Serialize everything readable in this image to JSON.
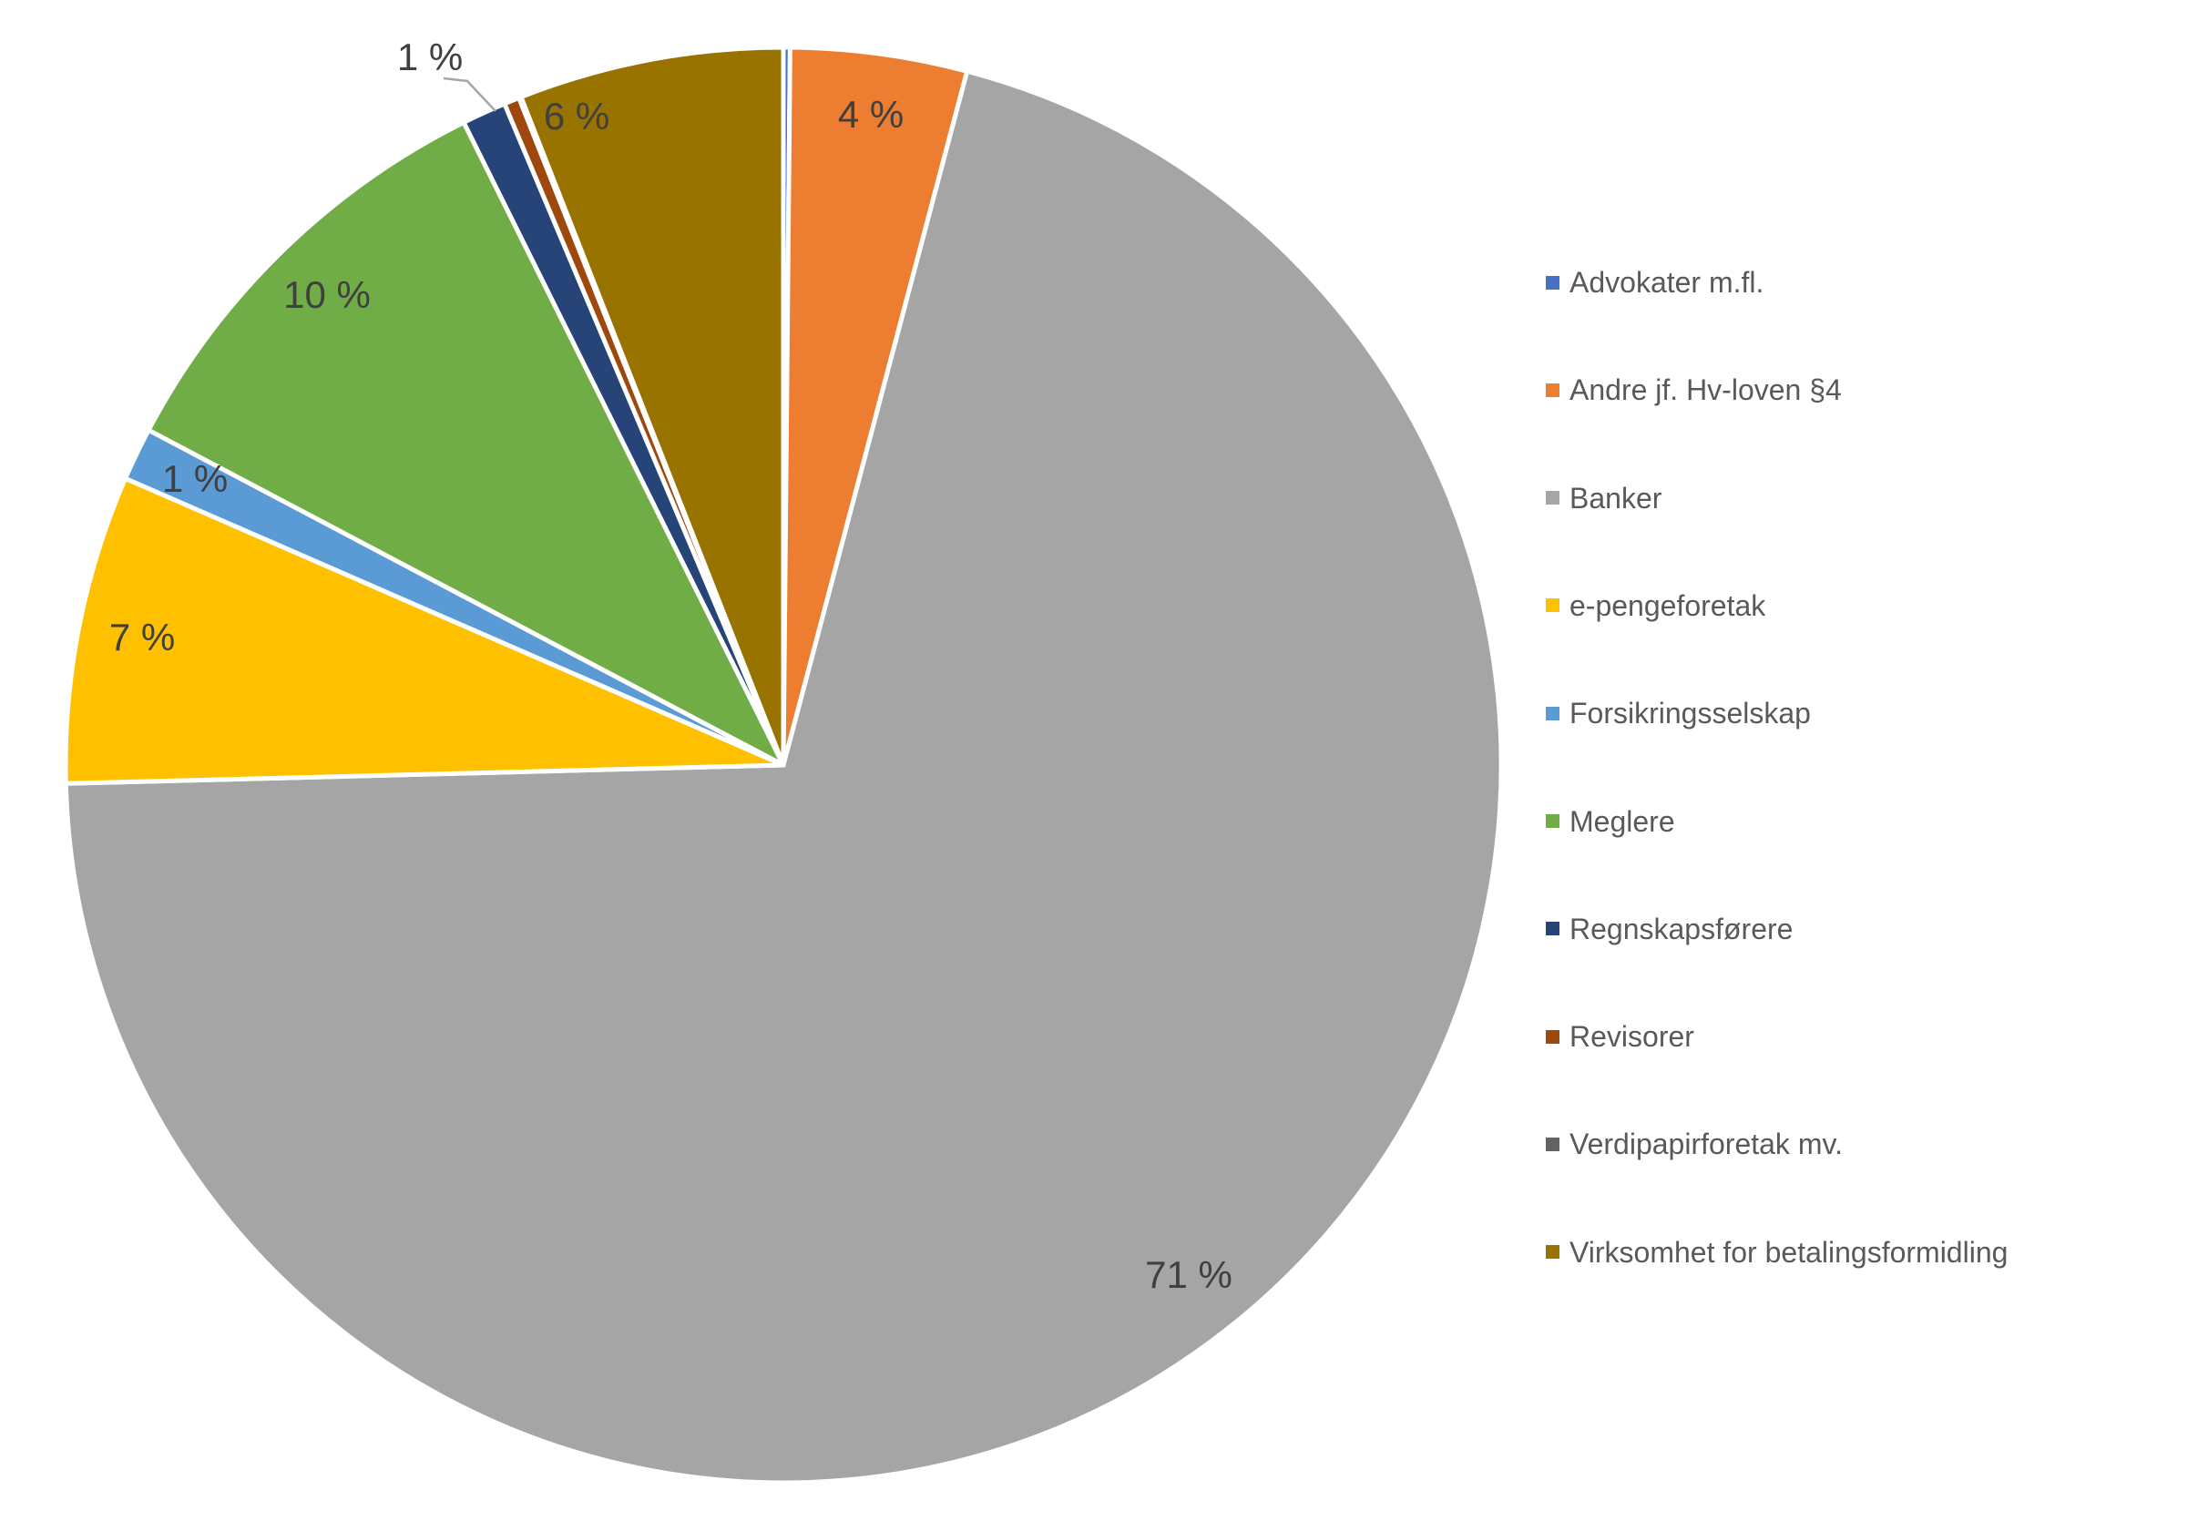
{
  "chart_data": {
    "type": "pie",
    "title": "",
    "legend_position": "right",
    "background_color": "#FFFFFF",
    "data_label_color": "#404040",
    "legend_text_color": "#595959",
    "leader_line_color": "#A6A6A6",
    "slices": [
      {
        "label": "Advokater m.fl.",
        "value_pct": 0,
        "display": "",
        "color": "#4472C4"
      },
      {
        "label": "Andre jf. Hv-loven §4",
        "value_pct": 4,
        "display": "4 %",
        "color": "#ED7D31"
      },
      {
        "label": "Banker",
        "value_pct": 71,
        "display": "71 %",
        "color": "#A5A5A5"
      },
      {
        "label": "e-pengeforetak",
        "value_pct": 7,
        "display": "7 %",
        "color": "#FFC000"
      },
      {
        "label": "Forsikringsselskap",
        "value_pct": 1,
        "display": "1 %",
        "color": "#5B9BD5"
      },
      {
        "label": "Meglere",
        "value_pct": 10,
        "display": "10 %",
        "color": "#70AD47"
      },
      {
        "label": "Regnskapsførere",
        "value_pct": 1,
        "display": "1 %",
        "color": "#264478"
      },
      {
        "label": "Revisorer",
        "value_pct": 0,
        "display": "",
        "color": "#9E480E"
      },
      {
        "label": "Verdipapirforetak mv.",
        "value_pct": 0,
        "display": "",
        "color": "#636363"
      },
      {
        "label": "Virksomhet for betalingsformidling",
        "value_pct": 6,
        "display": "6 %",
        "color": "#997300"
      }
    ]
  }
}
